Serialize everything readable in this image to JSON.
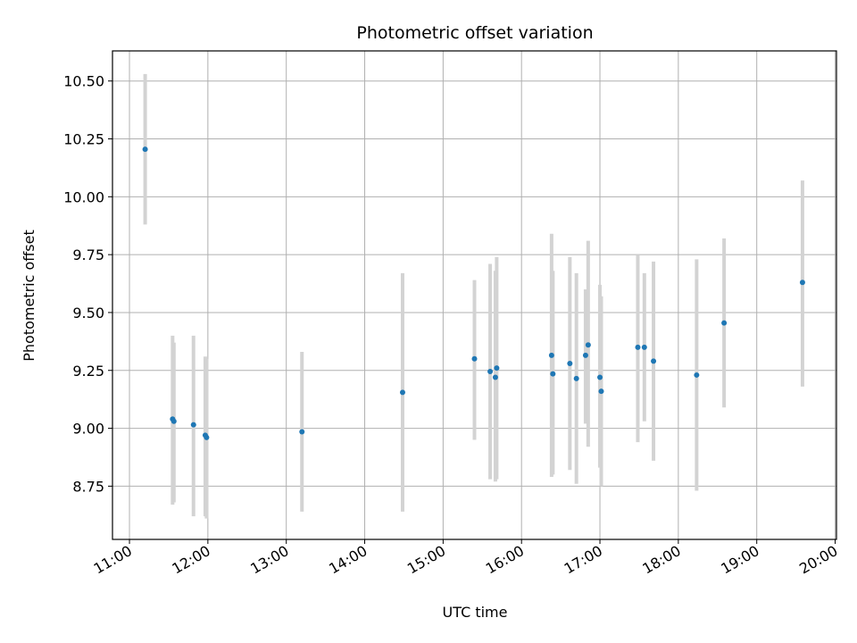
{
  "chart_data": {
    "type": "scatter",
    "title": "Photometric offset variation",
    "xlabel": "UTC time",
    "ylabel": "Photometric offset",
    "x_axis_type": "time",
    "xlim": [
      "10:47",
      "20:01"
    ],
    "ylim": [
      8.52,
      10.63
    ],
    "grid": true,
    "x_ticks": [
      "11:00",
      "12:00",
      "13:00",
      "14:00",
      "15:00",
      "16:00",
      "17:00",
      "18:00",
      "19:00",
      "20:00"
    ],
    "y_ticks": [
      "8.75",
      "9.00",
      "9.25",
      "9.50",
      "9.75",
      "10.00",
      "10.25",
      "10.50"
    ],
    "point_color": "#1f77b4",
    "errorbar_color": "#d3d3d3",
    "series": [
      {
        "points": [
          {
            "x": "11:12",
            "y": 10.205,
            "ylo": 9.88,
            "yhi": 10.53
          },
          {
            "x": "11:33",
            "y": 9.04,
            "ylo": 8.67,
            "yhi": 9.4
          },
          {
            "x": "11:34",
            "y": 9.03,
            "ylo": 8.68,
            "yhi": 9.37
          },
          {
            "x": "11:49",
            "y": 9.015,
            "ylo": 8.62,
            "yhi": 9.4
          },
          {
            "x": "11:58",
            "y": 8.97,
            "ylo": 8.62,
            "yhi": 9.31
          },
          {
            "x": "11:59",
            "y": 8.96,
            "ylo": 8.61,
            "yhi": 9.3
          },
          {
            "x": "13:12",
            "y": 8.985,
            "ylo": 8.64,
            "yhi": 9.33
          },
          {
            "x": "14:29",
            "y": 9.155,
            "ylo": 8.64,
            "yhi": 9.67
          },
          {
            "x": "15:24",
            "y": 9.3,
            "ylo": 8.95,
            "yhi": 9.64
          },
          {
            "x": "15:36",
            "y": 9.245,
            "ylo": 8.78,
            "yhi": 9.71
          },
          {
            "x": "15:40",
            "y": 9.22,
            "ylo": 8.77,
            "yhi": 9.68
          },
          {
            "x": "15:41",
            "y": 9.26,
            "ylo": 8.78,
            "yhi": 9.74
          },
          {
            "x": "16:23",
            "y": 9.315,
            "ylo": 8.79,
            "yhi": 9.84
          },
          {
            "x": "16:24",
            "y": 9.235,
            "ylo": 8.8,
            "yhi": 9.68
          },
          {
            "x": "16:37",
            "y": 9.28,
            "ylo": 8.82,
            "yhi": 9.74
          },
          {
            "x": "16:42",
            "y": 9.215,
            "ylo": 8.76,
            "yhi": 9.67
          },
          {
            "x": "16:49",
            "y": 9.315,
            "ylo": 9.02,
            "yhi": 9.6
          },
          {
            "x": "16:51",
            "y": 9.36,
            "ylo": 8.92,
            "yhi": 9.81
          },
          {
            "x": "17:00",
            "y": 9.22,
            "ylo": 8.83,
            "yhi": 9.62
          },
          {
            "x": "17:01",
            "y": 9.16,
            "ylo": 8.75,
            "yhi": 9.57
          },
          {
            "x": "17:29",
            "y": 9.35,
            "ylo": 8.94,
            "yhi": 9.75
          },
          {
            "x": "17:34",
            "y": 9.35,
            "ylo": 9.03,
            "yhi": 9.67
          },
          {
            "x": "17:41",
            "y": 9.29,
            "ylo": 8.86,
            "yhi": 9.72
          },
          {
            "x": "18:14",
            "y": 9.23,
            "ylo": 8.73,
            "yhi": 9.73
          },
          {
            "x": "18:35",
            "y": 9.455,
            "ylo": 9.09,
            "yhi": 9.82
          },
          {
            "x": "19:35",
            "y": 9.63,
            "ylo": 9.18,
            "yhi": 10.07
          }
        ]
      }
    ]
  }
}
